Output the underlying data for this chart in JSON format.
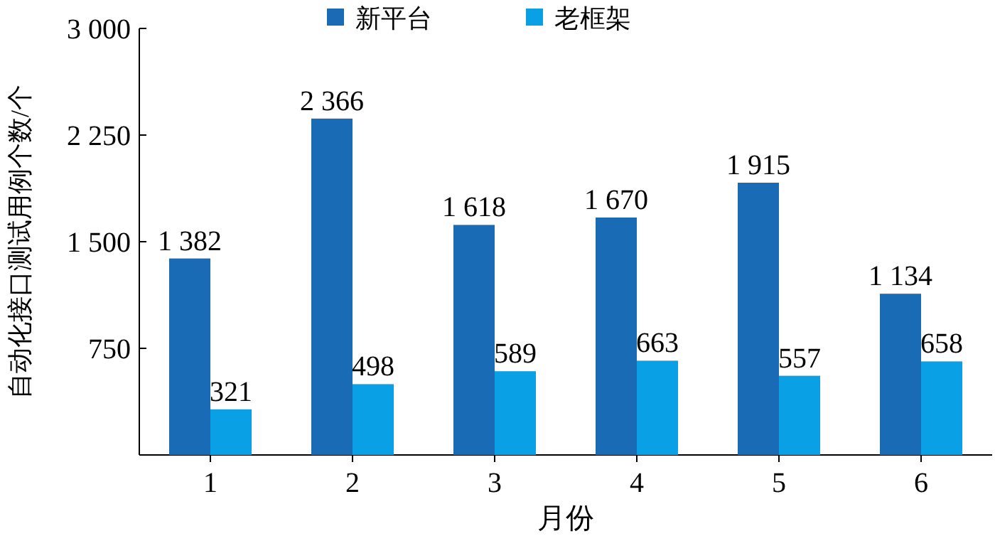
{
  "chart_data": {
    "type": "bar",
    "xlabel": "月份",
    "ylabel": "自动化接口测试用例个数/个",
    "categories": [
      "1",
      "2",
      "3",
      "4",
      "5",
      "6"
    ],
    "series": [
      {
        "name": "新平台",
        "color": "#1a6bb5",
        "values": [
          1382,
          2366,
          1618,
          1670,
          1915,
          1134
        ],
        "value_labels": [
          "1 382",
          "2 366",
          "1 618",
          "1 670",
          "1 915",
          "1 134"
        ]
      },
      {
        "name": "老框架",
        "color": "#0aa0e6",
        "values": [
          321,
          498,
          589,
          663,
          557,
          658
        ],
        "value_labels": [
          "321",
          "498",
          "589",
          "663",
          "557",
          "658"
        ]
      }
    ],
    "ylim": [
      0,
      3000
    ],
    "yticks": [
      {
        "value": 750,
        "label": "750"
      },
      {
        "value": 1500,
        "label": "1 500"
      },
      {
        "value": 2250,
        "label": "2 250"
      },
      {
        "value": 3000,
        "label": "3 000"
      }
    ],
    "grid": false,
    "legend": "top"
  }
}
